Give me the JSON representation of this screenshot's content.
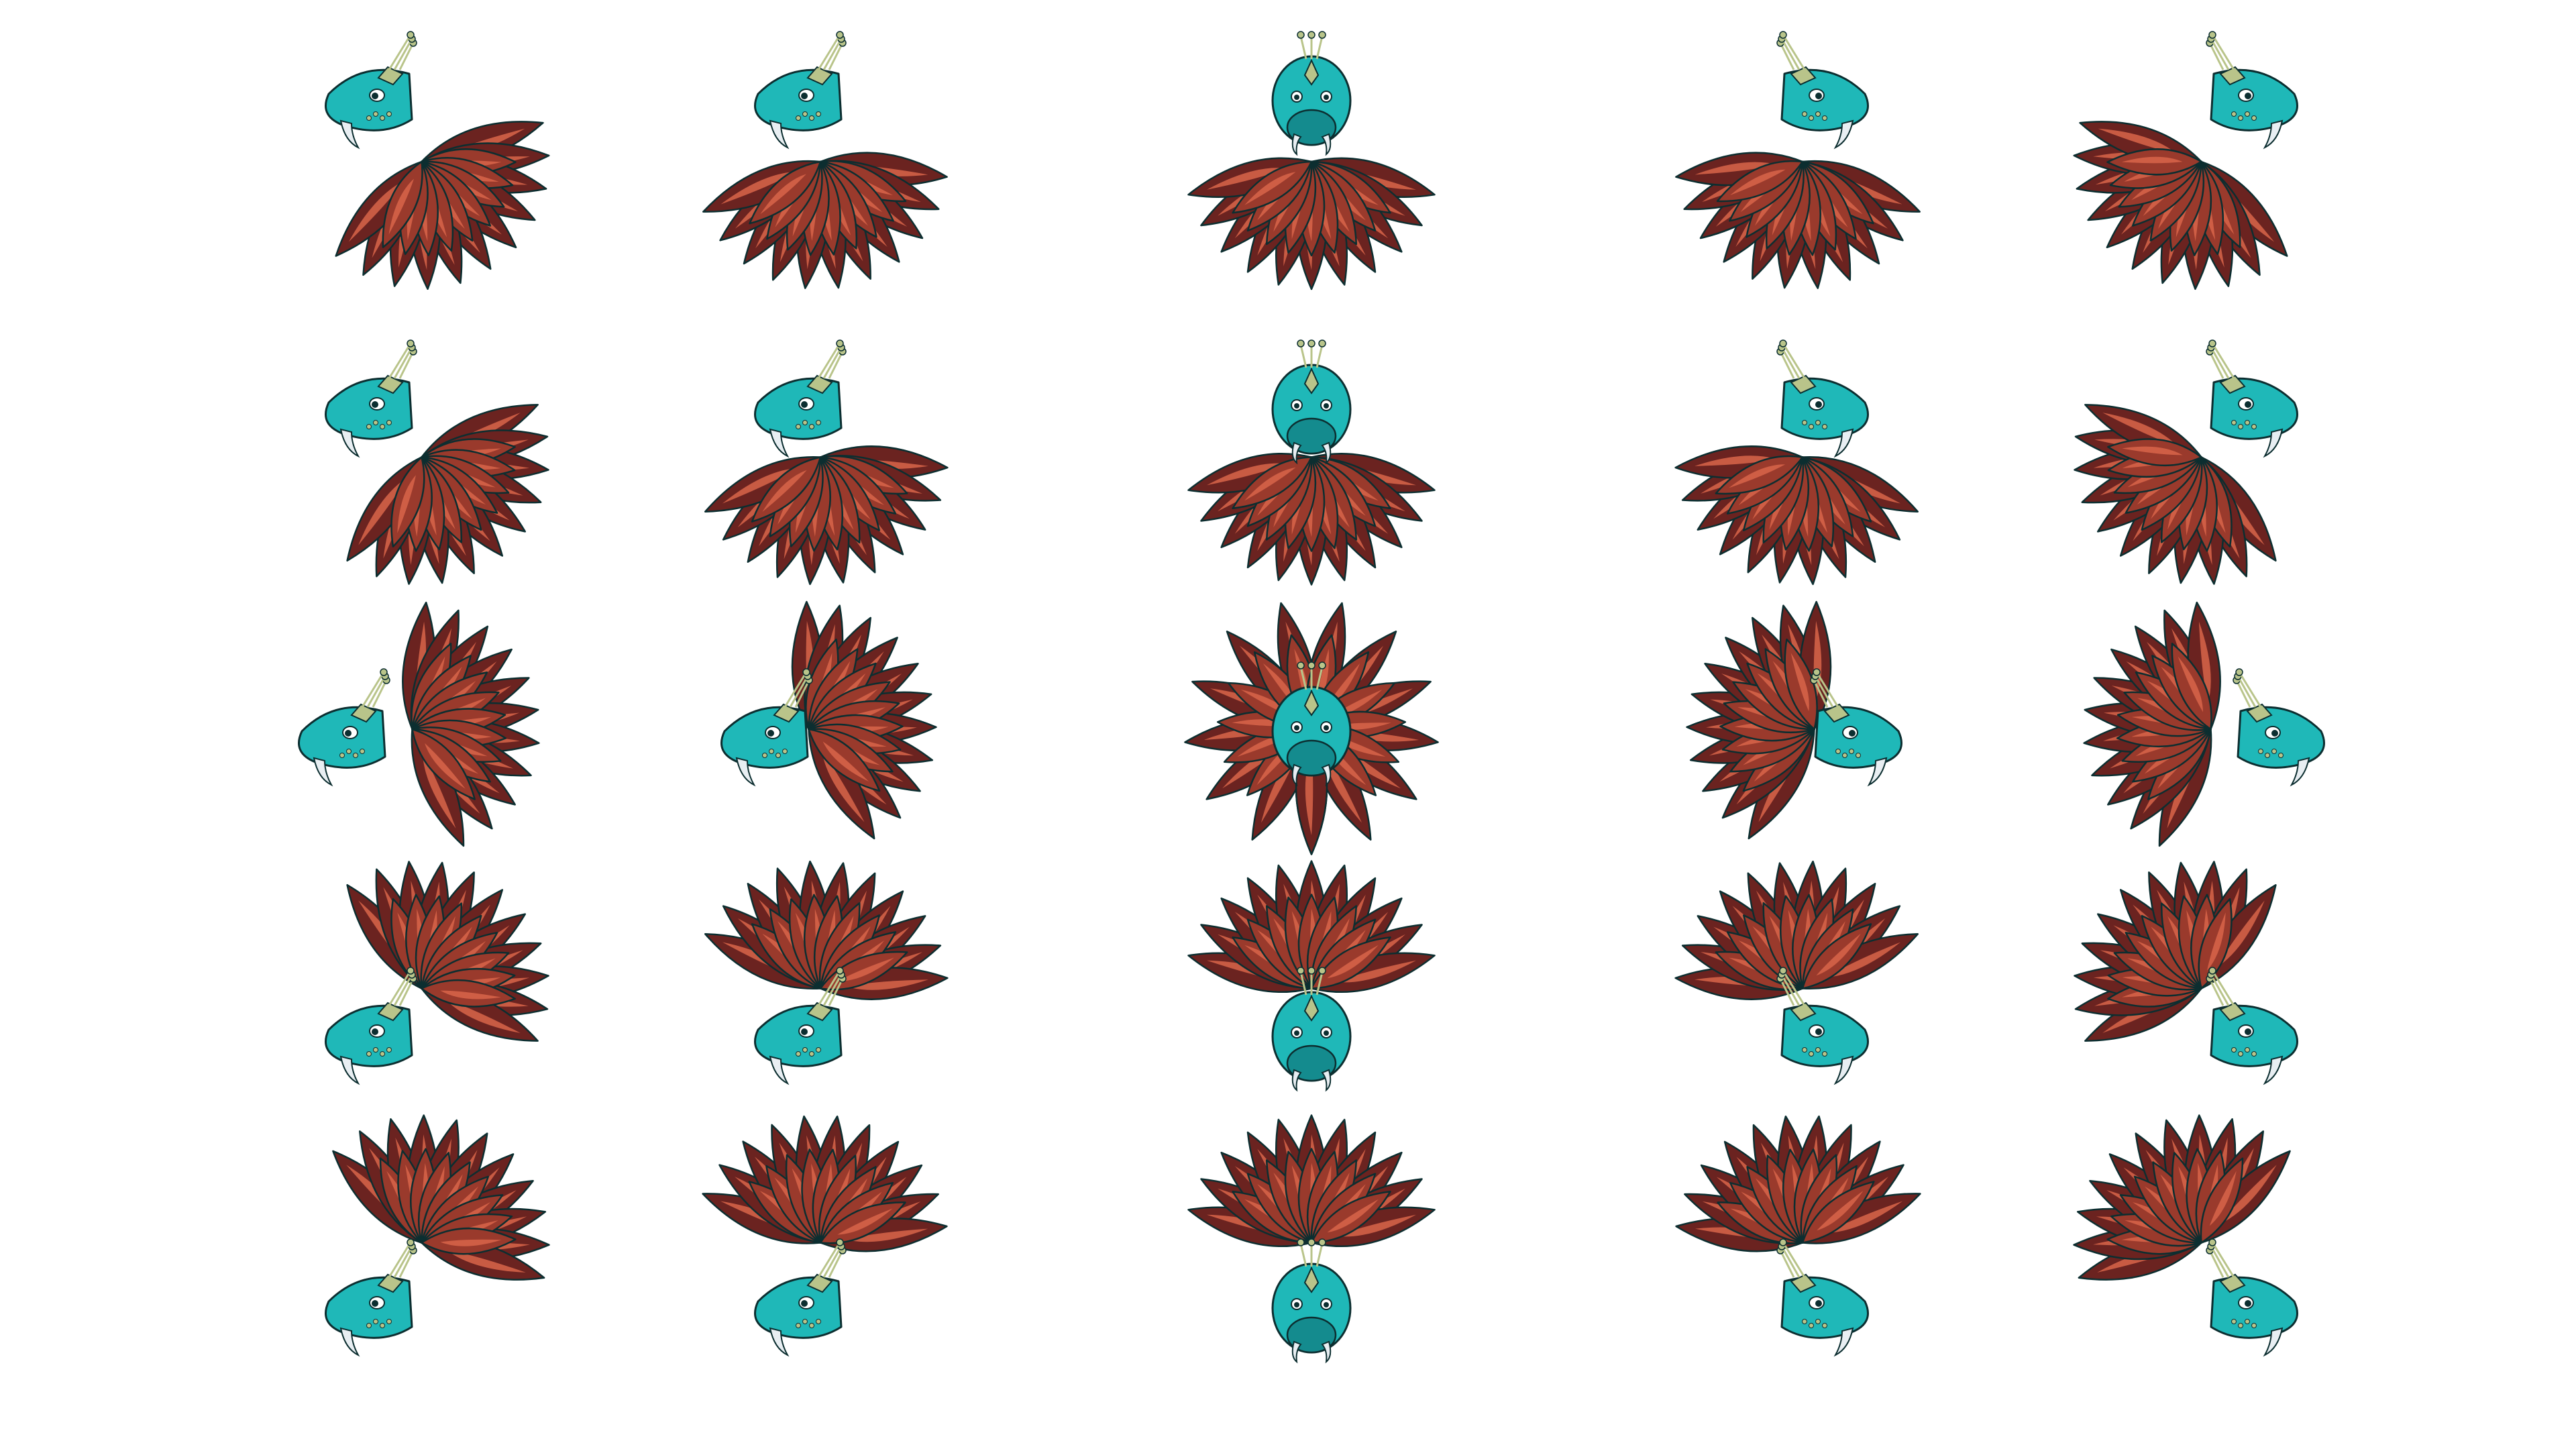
{
  "sprite_sheet": {
    "rows": 5,
    "columns": 5,
    "colors": {
      "background": "#ffffff",
      "head": "#1fb8b8",
      "head_shade": "#148b8e",
      "outline": "#0c2e30",
      "feather_dark": "#6b2320",
      "feather_mid": "#9a3a2c",
      "feather_light": "#d8654a",
      "tusk": "#e8eef2",
      "ornament": "#b9c48a"
    },
    "views": [
      {
        "row": 1,
        "col": 1,
        "view": "top-left"
      },
      {
        "row": 1,
        "col": 2,
        "view": "top-front-left"
      },
      {
        "row": 1,
        "col": 3,
        "view": "top"
      },
      {
        "row": 1,
        "col": 4,
        "view": "top-front-right"
      },
      {
        "row": 1,
        "col": 5,
        "view": "top-right"
      },
      {
        "row": 2,
        "col": 1,
        "view": "upper-left"
      },
      {
        "row": 2,
        "col": 2,
        "view": "upper-front-left"
      },
      {
        "row": 2,
        "col": 3,
        "view": "upper-back"
      },
      {
        "row": 2,
        "col": 4,
        "view": "upper-front-right"
      },
      {
        "row": 2,
        "col": 5,
        "view": "upper-right"
      },
      {
        "row": 3,
        "col": 1,
        "view": "side-left"
      },
      {
        "row": 3,
        "col": 2,
        "view": "side-front-left"
      },
      {
        "row": 3,
        "col": 3,
        "view": "front"
      },
      {
        "row": 3,
        "col": 4,
        "view": "side-front-right"
      },
      {
        "row": 3,
        "col": 5,
        "view": "side-right"
      },
      {
        "row": 4,
        "col": 1,
        "view": "lower-left"
      },
      {
        "row": 4,
        "col": 2,
        "view": "lower-front-left"
      },
      {
        "row": 4,
        "col": 3,
        "view": "lower-front"
      },
      {
        "row": 4,
        "col": 4,
        "view": "lower-front-right"
      },
      {
        "row": 4,
        "col": 5,
        "view": "lower-right"
      },
      {
        "row": 5,
        "col": 1,
        "view": "bottom-left"
      },
      {
        "row": 5,
        "col": 2,
        "view": "bottom-front-left"
      },
      {
        "row": 5,
        "col": 3,
        "view": "bottom"
      },
      {
        "row": 5,
        "col": 4,
        "view": "bottom-front-right"
      },
      {
        "row": 5,
        "col": 5,
        "view": "bottom-right"
      }
    ]
  }
}
